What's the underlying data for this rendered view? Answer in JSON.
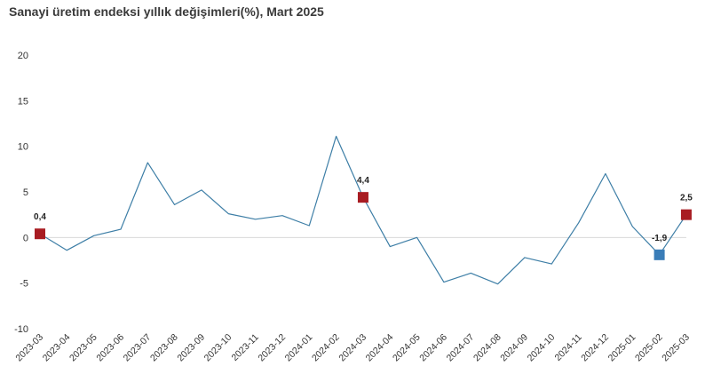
{
  "chart_data": {
    "type": "line",
    "title": "Sanayi üretim endeksi yıllık değişimleri(%), Mart 2025",
    "xlabel": "",
    "ylabel": "",
    "ylim": [
      -10,
      20
    ],
    "yticks": [
      20,
      15,
      10,
      5,
      0,
      -5,
      -10
    ],
    "grid": false,
    "legend": "none",
    "categories": [
      "2023-03",
      "2023-04",
      "2023-05",
      "2023-06",
      "2023-07",
      "2023-08",
      "2023-09",
      "2023-10",
      "2023-11",
      "2023-12",
      "2024-01",
      "2024-02",
      "2024-03",
      "2024-04",
      "2024-05",
      "2024-06",
      "2024-07",
      "2024-08",
      "2024-09",
      "2024-10",
      "2024-11",
      "2024-12",
      "2025-01",
      "2025-02",
      "2025-03"
    ],
    "series": [
      {
        "values": [
          0.4,
          -1.4,
          0.2,
          0.9,
          8.2,
          3.6,
          5.2,
          2.6,
          2.0,
          2.4,
          1.3,
          11.1,
          4.4,
          -1.0,
          0.0,
          -4.9,
          -3.9,
          -5.1,
          -2.2,
          -2.9,
          1.6,
          7.0,
          1.2,
          -1.9,
          2.5
        ],
        "color": "#3d7ea6"
      }
    ],
    "annotations": [
      {
        "index": 0,
        "label": "0,4",
        "marker_color": "#a81c22"
      },
      {
        "index": 12,
        "label": "4,4",
        "marker_color": "#a81c22"
      },
      {
        "index": 23,
        "label": "-1,9",
        "marker_color": "#3a7db8"
      },
      {
        "index": 24,
        "label": "2,5",
        "marker_color": "#a81c22"
      }
    ],
    "zero_line_color": "#d9d9d9"
  }
}
